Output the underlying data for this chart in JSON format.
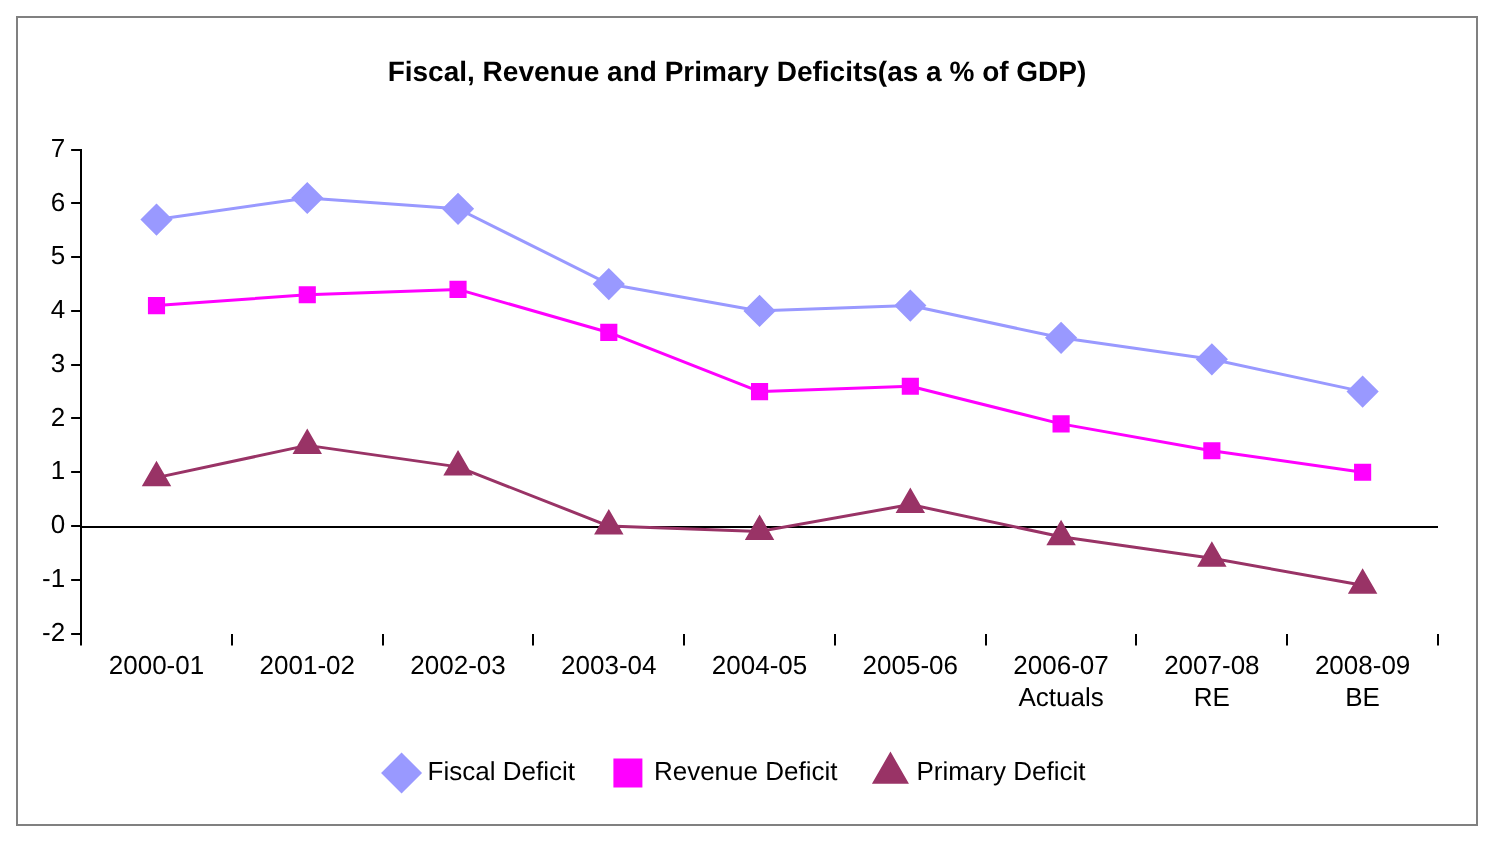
{
  "chart_data": {
    "type": "line",
    "title": "Fiscal, Revenue and Primary Deficits(as a % of GDP)",
    "categories": [
      "2000-01",
      "2001-02",
      "2002-03",
      "2003-04",
      "2004-05",
      "2005-06",
      "2006-07\nActuals",
      "2007-08\nRE",
      "2008-09\nBE"
    ],
    "series": [
      {
        "name": "Fiscal Deficit",
        "color": "#9999ff",
        "marker": "diamond",
        "values": [
          5.7,
          6.1,
          5.9,
          4.5,
          4.0,
          4.1,
          3.5,
          3.1,
          2.5
        ]
      },
      {
        "name": "Revenue Deficit",
        "color": "#ff00ff",
        "marker": "square",
        "values": [
          4.1,
          4.3,
          4.4,
          3.6,
          2.5,
          2.6,
          1.9,
          1.4,
          1.0
        ]
      },
      {
        "name": "Primary Deficit",
        "color": "#993366",
        "marker": "triangle",
        "values": [
          0.9,
          1.5,
          1.1,
          0.0,
          -0.1,
          0.4,
          -0.2,
          -0.6,
          -1.1
        ]
      }
    ],
    "ylim": [
      -2,
      7
    ],
    "yticks": [
      -2,
      -1,
      0,
      1,
      2,
      3,
      4,
      5,
      6,
      7
    ],
    "ref_lines": [
      {
        "axis": "y",
        "value": 0,
        "color": "#000000"
      }
    ],
    "grid": false,
    "legend": "bottom"
  }
}
